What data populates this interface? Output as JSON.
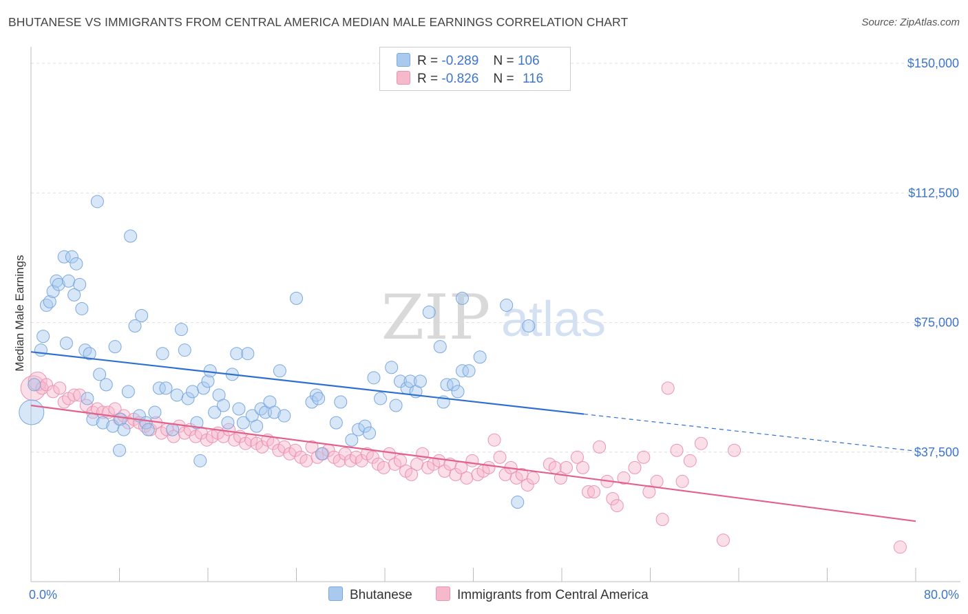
{
  "header": {
    "title": "BHUTANESE VS IMMIGRANTS FROM CENTRAL AMERICA MEDIAN MALE EARNINGS CORRELATION CHART",
    "source": "Source: ZipAtlas.com"
  },
  "watermark": {
    "zip": "ZIP",
    "atlas": "atlas"
  },
  "legend": {
    "r_label": "R =",
    "n_label": "N =",
    "rows": [
      {
        "r": "-0.289",
        "n": "106"
      },
      {
        "r": "-0.826",
        "n": "116"
      }
    ]
  },
  "bottom_legend": [
    "Bhutanese",
    "Immigrants from Central America"
  ],
  "colors": {
    "blue_fill": "#a9c9ef",
    "blue_stroke": "#7aa7de",
    "blue_line": "#2e6fd0",
    "pink_fill": "#f6b8cb",
    "pink_stroke": "#ec93b0",
    "pink_line": "#e2608a",
    "tick_text": "#3d76c9",
    "grid": "#dddddd"
  },
  "chart_data": {
    "type": "scatter",
    "title": "BHUTANESE VS IMMIGRANTS FROM CENTRAL AMERICA MEDIAN MALE EARNINGS CORRELATION CHART",
    "xlabel": "",
    "ylabel": "Median Male Earnings",
    "xlim": [
      0,
      80
    ],
    "ylim": [
      0,
      153000
    ],
    "x_ticks_labeled": [
      {
        "value": 0,
        "label": "0.0%"
      },
      {
        "value": 80,
        "label": "80.0%"
      }
    ],
    "x_minor_ticks": [
      0,
      8,
      16,
      24,
      32,
      40,
      48,
      56,
      64,
      72,
      80
    ],
    "y_ticks": [
      {
        "value": 37500,
        "label": "$37,500"
      },
      {
        "value": 75000,
        "label": "$75,000"
      },
      {
        "value": 112500,
        "label": "$112,500"
      },
      {
        "value": 150000,
        "label": "$150,000"
      }
    ],
    "grid": true,
    "legend_position": "top-center",
    "series": [
      {
        "name": "Bhutanese",
        "r": -0.289,
        "n": 106,
        "trend": {
          "x0": 0,
          "y0": 66500,
          "x1": 50,
          "y1": 48500,
          "dash_to_x": 80,
          "dash_to_y": 37800
        },
        "points": [
          [
            0.05,
            49000,
            2
          ],
          [
            0.3,
            57000,
            1
          ],
          [
            0.9,
            67000,
            1
          ],
          [
            1.1,
            71000,
            1
          ],
          [
            1.4,
            80000,
            1
          ],
          [
            1.7,
            81000,
            1
          ],
          [
            2.0,
            84000,
            1
          ],
          [
            2.3,
            87000,
            1
          ],
          [
            2.5,
            86000,
            1
          ],
          [
            3.0,
            94000,
            1
          ],
          [
            3.2,
            69000,
            1
          ],
          [
            3.4,
            87000,
            1
          ],
          [
            3.7,
            94000,
            1
          ],
          [
            3.9,
            83000,
            1
          ],
          [
            4.1,
            92000,
            1
          ],
          [
            4.4,
            86000,
            1
          ],
          [
            4.6,
            79000,
            1
          ],
          [
            4.9,
            67000,
            1
          ],
          [
            5.1,
            53000,
            1
          ],
          [
            5.3,
            66000,
            1
          ],
          [
            5.6,
            47000,
            1
          ],
          [
            6.0,
            110000,
            1
          ],
          [
            6.2,
            60000,
            1
          ],
          [
            6.5,
            46000,
            1
          ],
          [
            6.8,
            57000,
            1
          ],
          [
            7.4,
            45000,
            1
          ],
          [
            7.6,
            68000,
            1
          ],
          [
            8.0,
            38000,
            1
          ],
          [
            8.1,
            47000,
            1
          ],
          [
            8.4,
            44000,
            1
          ],
          [
            8.8,
            55000,
            1
          ],
          [
            9.0,
            100000,
            1
          ],
          [
            9.4,
            74000,
            1
          ],
          [
            9.8,
            48000,
            1
          ],
          [
            10.0,
            77000,
            1
          ],
          [
            10.4,
            46000,
            1
          ],
          [
            10.6,
            44000,
            1
          ],
          [
            11.2,
            49000,
            1
          ],
          [
            11.6,
            56000,
            1
          ],
          [
            11.9,
            66000,
            1
          ],
          [
            12.2,
            56000,
            1
          ],
          [
            12.8,
            44000,
            1
          ],
          [
            13.2,
            54000,
            1
          ],
          [
            13.6,
            73000,
            1
          ],
          [
            13.9,
            67000,
            1
          ],
          [
            14.2,
            53000,
            1
          ],
          [
            14.6,
            55000,
            1
          ],
          [
            15.0,
            46000,
            1
          ],
          [
            15.3,
            35000,
            1
          ],
          [
            15.6,
            56000,
            1
          ],
          [
            16.0,
            58000,
            1
          ],
          [
            16.2,
            61000,
            1
          ],
          [
            16.6,
            49000,
            1
          ],
          [
            17.0,
            54000,
            1
          ],
          [
            17.4,
            51000,
            1
          ],
          [
            17.8,
            46000,
            1
          ],
          [
            18.2,
            60000,
            1
          ],
          [
            18.6,
            66000,
            1
          ],
          [
            18.8,
            50000,
            1
          ],
          [
            19.2,
            46000,
            1
          ],
          [
            19.6,
            66000,
            1
          ],
          [
            20.0,
            48000,
            1
          ],
          [
            20.4,
            45000,
            1
          ],
          [
            20.8,
            50000,
            1
          ],
          [
            21.2,
            49000,
            1
          ],
          [
            21.6,
            52000,
            1
          ],
          [
            22.0,
            49000,
            1
          ],
          [
            22.5,
            61000,
            1
          ],
          [
            22.9,
            48000,
            1
          ],
          [
            24.0,
            82000,
            1
          ],
          [
            25.4,
            52000,
            1
          ],
          [
            25.8,
            54000,
            1
          ],
          [
            26.0,
            53000,
            1
          ],
          [
            26.3,
            37000,
            1
          ],
          [
            27.6,
            46000,
            1
          ],
          [
            28.0,
            52000,
            1
          ],
          [
            29.0,
            41000,
            1
          ],
          [
            29.6,
            44000,
            1
          ],
          [
            30.2,
            45000,
            1
          ],
          [
            30.6,
            43000,
            1
          ],
          [
            31.0,
            59000,
            1
          ],
          [
            31.6,
            53000,
            1
          ],
          [
            32.6,
            62000,
            1
          ],
          [
            33.0,
            51000,
            1
          ],
          [
            33.4,
            58000,
            1
          ],
          [
            34.0,
            56000,
            1
          ],
          [
            34.3,
            58000,
            1
          ],
          [
            34.8,
            55000,
            1
          ],
          [
            35.2,
            58000,
            1
          ],
          [
            36.0,
            78000,
            1
          ],
          [
            37.0,
            68000,
            1
          ],
          [
            37.3,
            52000,
            1
          ],
          [
            37.6,
            57000,
            1
          ],
          [
            38.2,
            57000,
            1
          ],
          [
            38.6,
            55000,
            1
          ],
          [
            39.0,
            61000,
            1
          ],
          [
            39.0,
            82000,
            1
          ],
          [
            39.6,
            61000,
            1
          ],
          [
            40.6,
            65000,
            1
          ],
          [
            43.0,
            80000,
            1
          ],
          [
            44.0,
            23000,
            1
          ],
          [
            45.0,
            74000,
            1
          ]
        ]
      },
      {
        "name": "Immigrants from Central America",
        "r": -0.826,
        "n": 116,
        "trend": {
          "x0": 0,
          "y0": 51000,
          "x1": 80,
          "y1": 17500
        },
        "points": [
          [
            0.2,
            56000,
            2
          ],
          [
            0.6,
            58000,
            1.5
          ],
          [
            1.0,
            56000,
            1
          ],
          [
            1.4,
            57000,
            1
          ],
          [
            2.0,
            55000,
            1
          ],
          [
            2.6,
            56000,
            1
          ],
          [
            3.0,
            52000,
            1
          ],
          [
            3.4,
            53000,
            1
          ],
          [
            3.9,
            54000,
            1
          ],
          [
            4.4,
            54000,
            1
          ],
          [
            5.0,
            51000,
            1
          ],
          [
            5.6,
            49000,
            1
          ],
          [
            6.0,
            50000,
            1
          ],
          [
            6.5,
            49000,
            1
          ],
          [
            7.0,
            49000,
            1
          ],
          [
            7.6,
            50000,
            1
          ],
          [
            8.0,
            47000,
            1
          ],
          [
            8.4,
            48000,
            1
          ],
          [
            8.8,
            46000,
            1
          ],
          [
            9.3,
            47000,
            1
          ],
          [
            9.8,
            46000,
            1
          ],
          [
            10.3,
            45000,
            1
          ],
          [
            10.8,
            44000,
            1
          ],
          [
            11.3,
            46000,
            1
          ],
          [
            11.8,
            43000,
            1
          ],
          [
            12.3,
            44000,
            1
          ],
          [
            12.9,
            42000,
            1
          ],
          [
            13.4,
            45000,
            1
          ],
          [
            13.9,
            43000,
            1
          ],
          [
            14.4,
            44000,
            1
          ],
          [
            14.9,
            42000,
            1
          ],
          [
            15.4,
            43000,
            1
          ],
          [
            15.9,
            41000,
            1
          ],
          [
            16.4,
            42000,
            1
          ],
          [
            16.9,
            43000,
            1
          ],
          [
            17.4,
            42000,
            1
          ],
          [
            17.9,
            44000,
            1
          ],
          [
            18.4,
            41000,
            1
          ],
          [
            18.9,
            42000,
            1
          ],
          [
            19.4,
            40000,
            1
          ],
          [
            19.9,
            41000,
            1
          ],
          [
            20.4,
            40000,
            1
          ],
          [
            20.9,
            39000,
            1
          ],
          [
            21.4,
            41000,
            1
          ],
          [
            21.9,
            40000,
            1
          ],
          [
            22.4,
            38000,
            1
          ],
          [
            22.9,
            39000,
            1
          ],
          [
            23.4,
            37000,
            1
          ],
          [
            23.9,
            38000,
            1
          ],
          [
            24.4,
            36000,
            1
          ],
          [
            24.9,
            35000,
            1
          ],
          [
            25.4,
            39000,
            1
          ],
          [
            25.9,
            36000,
            1
          ],
          [
            26.4,
            37000,
            1
          ],
          [
            26.9,
            38000,
            1
          ],
          [
            27.4,
            36000,
            1
          ],
          [
            27.9,
            35000,
            1
          ],
          [
            28.4,
            37000,
            1
          ],
          [
            28.9,
            35000,
            1
          ],
          [
            29.4,
            36000,
            1
          ],
          [
            29.9,
            35000,
            1
          ],
          [
            30.4,
            37000,
            1
          ],
          [
            30.9,
            36000,
            1
          ],
          [
            31.4,
            34000,
            1
          ],
          [
            31.9,
            33000,
            1
          ],
          [
            32.4,
            37000,
            1
          ],
          [
            32.9,
            34000,
            1
          ],
          [
            33.4,
            35000,
            1
          ],
          [
            33.9,
            32000,
            1
          ],
          [
            34.4,
            31000,
            1
          ],
          [
            34.9,
            34000,
            1
          ],
          [
            35.4,
            37000,
            1
          ],
          [
            35.9,
            33000,
            1
          ],
          [
            36.4,
            34000,
            1
          ],
          [
            36.9,
            35000,
            1
          ],
          [
            37.4,
            32000,
            1
          ],
          [
            37.9,
            34000,
            1
          ],
          [
            38.4,
            31000,
            1
          ],
          [
            38.9,
            33000,
            1
          ],
          [
            39.4,
            30000,
            1
          ],
          [
            39.9,
            35000,
            1
          ],
          [
            40.4,
            31000,
            1
          ],
          [
            40.9,
            32000,
            1
          ],
          [
            41.4,
            33000,
            1
          ],
          [
            41.9,
            41000,
            1
          ],
          [
            42.4,
            36000,
            1
          ],
          [
            42.9,
            31000,
            1
          ],
          [
            43.4,
            33000,
            1
          ],
          [
            43.9,
            30000,
            1
          ],
          [
            44.4,
            31000,
            1
          ],
          [
            44.9,
            28000,
            1
          ],
          [
            45.4,
            30000,
            1
          ],
          [
            46.9,
            34000,
            1
          ],
          [
            47.4,
            33000,
            1
          ],
          [
            47.9,
            30000,
            1
          ],
          [
            48.4,
            33000,
            1
          ],
          [
            49.4,
            36000,
            1
          ],
          [
            49.9,
            33000,
            1
          ],
          [
            50.4,
            26000,
            1
          ],
          [
            50.9,
            26000,
            1
          ],
          [
            51.4,
            39000,
            1
          ],
          [
            52.1,
            29000,
            1
          ],
          [
            52.6,
            24000,
            1
          ],
          [
            53.0,
            22000,
            1
          ],
          [
            53.6,
            30000,
            1
          ],
          [
            54.6,
            33000,
            1
          ],
          [
            55.4,
            36000,
            1
          ],
          [
            55.9,
            26000,
            1
          ],
          [
            56.6,
            29000,
            1
          ],
          [
            57.1,
            18000,
            1
          ],
          [
            57.6,
            56000,
            1
          ],
          [
            58.4,
            38000,
            1
          ],
          [
            58.9,
            29000,
            1
          ],
          [
            59.6,
            35000,
            1
          ],
          [
            60.6,
            40000,
            1
          ],
          [
            62.6,
            12000,
            1
          ],
          [
            63.6,
            38000,
            1
          ],
          [
            78.6,
            10000,
            1
          ]
        ]
      }
    ]
  }
}
